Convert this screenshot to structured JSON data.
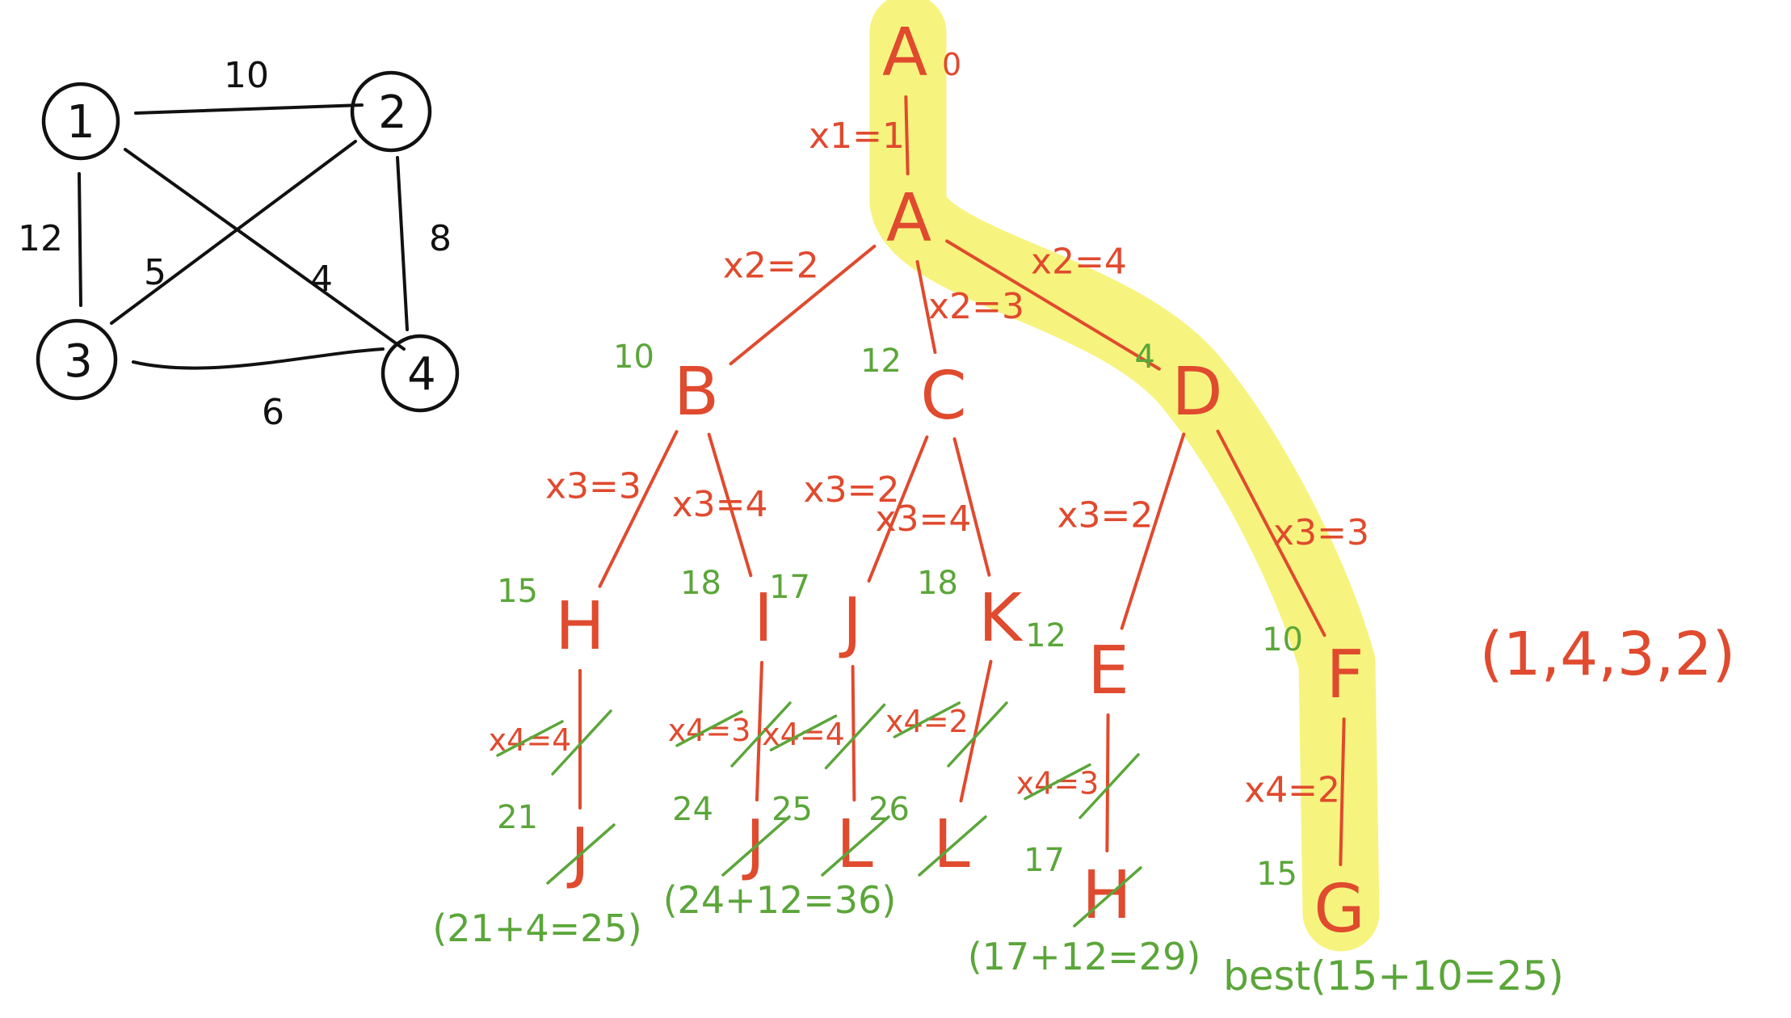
{
  "colors": {
    "graph_ink": "#111111",
    "tree_ink": "#e04a2e",
    "bound_ink": "#5ba63a",
    "highlight": "#f6f47e"
  },
  "graph": {
    "vertices": [
      "1",
      "2",
      "3",
      "4"
    ],
    "edges": [
      {
        "from": "1",
        "to": "2",
        "weight": "10"
      },
      {
        "from": "1",
        "to": "3",
        "weight": "12"
      },
      {
        "from": "2",
        "to": "4",
        "weight": "8"
      },
      {
        "from": "3",
        "to": "4",
        "weight": "6"
      },
      {
        "from": "2",
        "to": "3",
        "weight": "5"
      },
      {
        "from": "1",
        "to": "4",
        "weight": "4"
      }
    ]
  },
  "tree": {
    "nodes": [
      {
        "id": "A0",
        "label": "A",
        "subscript": "0",
        "bound": ""
      },
      {
        "id": "A",
        "label": "A",
        "bound": ""
      },
      {
        "id": "B",
        "label": "B",
        "bound": "10"
      },
      {
        "id": "C",
        "label": "C",
        "bound": "12"
      },
      {
        "id": "D",
        "label": "D",
        "bound": "4"
      },
      {
        "id": "H1",
        "label": "H",
        "bound": "15"
      },
      {
        "id": "I",
        "label": "I",
        "bound": "18"
      },
      {
        "id": "J1",
        "label": "J",
        "bound": "17"
      },
      {
        "id": "K",
        "label": "K",
        "bound": "18"
      },
      {
        "id": "E",
        "label": "E",
        "bound": "12"
      },
      {
        "id": "F",
        "label": "F",
        "bound": "10"
      },
      {
        "id": "J2",
        "label": "J",
        "bound": "21"
      },
      {
        "id": "J3",
        "label": "J",
        "bound": "24"
      },
      {
        "id": "L1",
        "label": "L",
        "bound": "25"
      },
      {
        "id": "L2",
        "label": "L",
        "bound": "26"
      },
      {
        "id": "H2",
        "label": "H",
        "bound": "17"
      },
      {
        "id": "G",
        "label": "G",
        "bound": "15"
      }
    ],
    "edges": [
      {
        "from": "A0",
        "to": "A",
        "label": "x1=1",
        "pruned": false
      },
      {
        "from": "A",
        "to": "B",
        "label": "x2=2",
        "pruned": false
      },
      {
        "from": "A",
        "to": "C",
        "label": "x2=3",
        "pruned": false
      },
      {
        "from": "A",
        "to": "D",
        "label": "x2=4",
        "pruned": false
      },
      {
        "from": "B",
        "to": "H1",
        "label": "x3=3",
        "pruned": false
      },
      {
        "from": "B",
        "to": "I",
        "label": "x3=4",
        "pruned": false
      },
      {
        "from": "C",
        "to": "J1",
        "label": "x3=2",
        "pruned": false
      },
      {
        "from": "C",
        "to": "K",
        "label": "x3=4",
        "pruned": false
      },
      {
        "from": "D",
        "to": "E",
        "label": "x3=2",
        "pruned": false
      },
      {
        "from": "D",
        "to": "F",
        "label": "x3=3",
        "pruned": false
      },
      {
        "from": "H1",
        "to": "J2",
        "label": "x4=4",
        "pruned": true
      },
      {
        "from": "I",
        "to": "J3",
        "label": "x4=3",
        "pruned": true
      },
      {
        "from": "J1",
        "to": "L1",
        "label": "x4=4",
        "pruned": true
      },
      {
        "from": "K",
        "to": "L2",
        "label": "x4=2",
        "pruned": true
      },
      {
        "from": "E",
        "to": "H2",
        "label": "x4=3",
        "pruned": true
      },
      {
        "from": "F",
        "to": "G",
        "label": "x4=2",
        "pruned": false
      }
    ],
    "leaf_costs": [
      {
        "node": "J2",
        "text": "(21+4=25)"
      },
      {
        "node": "J3",
        "text": "(24+12=36)"
      },
      {
        "node": "H2",
        "text": "(17+12=29)"
      },
      {
        "node": "G",
        "text": "best(15+10=25)"
      }
    ],
    "answer": "(1,4,3,2)"
  }
}
